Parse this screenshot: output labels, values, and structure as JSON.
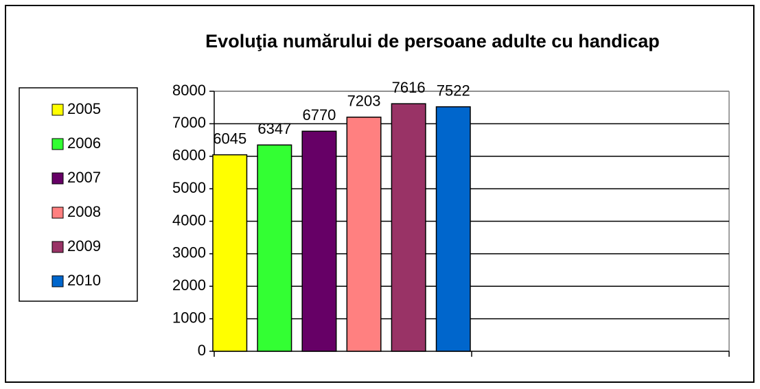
{
  "chart_data": {
    "type": "bar",
    "title": "Evoluţia numărului de persoane adulte cu handicap",
    "categories": [
      null,
      null
    ],
    "series": [
      {
        "name": "2005",
        "color": "#ffff00",
        "values": [
          6045,
          null
        ]
      },
      {
        "name": "2006",
        "color": "#33ff33",
        "values": [
          6347,
          null
        ]
      },
      {
        "name": "2007",
        "color": "#660066",
        "values": [
          6770,
          null
        ]
      },
      {
        "name": "2008",
        "color": "#ff8080",
        "values": [
          7203,
          null
        ]
      },
      {
        "name": "2009",
        "color": "#993366",
        "values": [
          7616,
          null
        ]
      },
      {
        "name": "2010",
        "color": "#0066cc",
        "values": [
          7522,
          null
        ]
      }
    ],
    "ylim": [
      0,
      8000
    ],
    "yticks": [
      0,
      1000,
      2000,
      3000,
      4000,
      5000,
      6000,
      7000,
      8000
    ],
    "grid": true,
    "legend": "left"
  }
}
